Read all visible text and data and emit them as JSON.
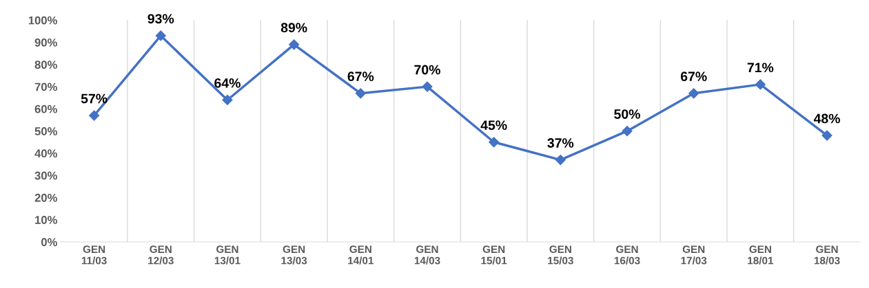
{
  "chart_data": {
    "type": "line",
    "categories": [
      "GEN\n11/03",
      "GEN\n12/03",
      "GEN\n13/01",
      "GEN\n13/03",
      "GEN\n14/01",
      "GEN\n14/03",
      "GEN\n15/01",
      "GEN\n15/03",
      "GEN\n16/03",
      "GEN\n17/03",
      "GEN\n18/01",
      "GEN\n18/03"
    ],
    "series": [
      {
        "color": "#4472c4",
        "values": [
          57,
          93,
          64,
          89,
          67,
          70,
          45,
          37,
          50,
          67,
          71,
          48
        ]
      }
    ],
    "value_labels": [
      "57%",
      "93%",
      "64%",
      "89%",
      "67%",
      "70%",
      "45%",
      "37%",
      "50%",
      "67%",
      "71%",
      "48%"
    ],
    "ylim": [
      0,
      100
    ],
    "yticks": [
      {
        "value": 0,
        "label": "0%"
      },
      {
        "value": 10,
        "label": "10%"
      },
      {
        "value": 20,
        "label": "20%"
      },
      {
        "value": 30,
        "label": "30%"
      },
      {
        "value": 40,
        "label": "40%"
      },
      {
        "value": 50,
        "label": "50%"
      },
      {
        "value": 60,
        "label": "60%"
      },
      {
        "value": 70,
        "label": "70%"
      },
      {
        "value": 80,
        "label": "80%"
      },
      {
        "value": 90,
        "label": "90%"
      },
      {
        "value": 100,
        "label": "100%"
      }
    ],
    "grid": "x",
    "marker": "diamond",
    "line_style": "solid",
    "legend": false
  }
}
